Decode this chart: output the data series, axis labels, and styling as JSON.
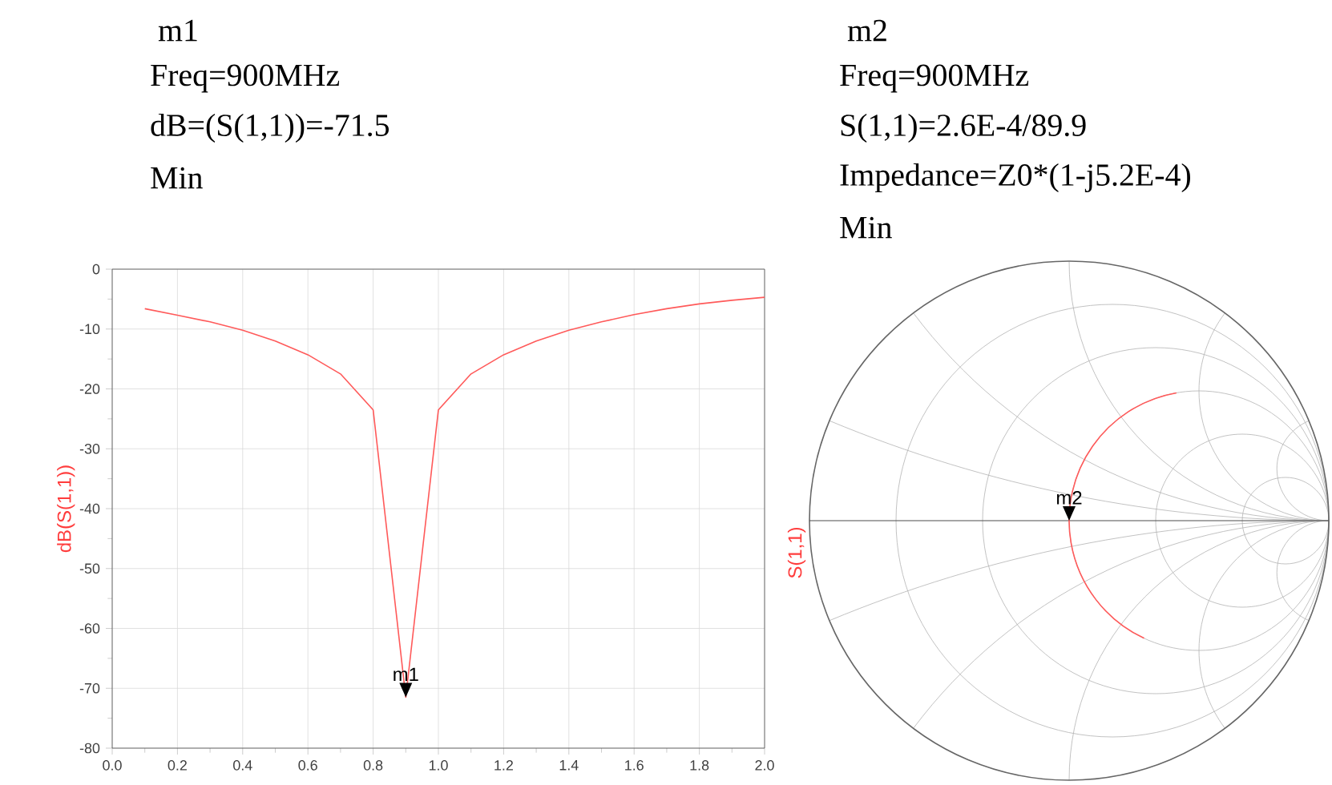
{
  "chart_data": [
    {
      "type": "line",
      "xlabel": null,
      "ylabel": "dB(S(1,1))",
      "x": [
        0.1,
        0.2,
        0.3,
        0.4,
        0.5,
        0.6,
        0.7,
        0.8,
        0.9,
        1.0,
        1.1,
        1.2,
        1.3,
        1.4,
        1.5,
        1.6,
        1.7,
        1.8,
        1.9,
        2.0
      ],
      "series": [
        {
          "color": "#ff5a5a",
          "values": [
            -6.6,
            -7.7,
            -8.8,
            -10.2,
            -12,
            -14.3,
            -17.5,
            -23.5,
            -71.5,
            -23.5,
            -17.5,
            -14.3,
            -12,
            -10.2,
            -8.8,
            -7.6,
            -6.6,
            -5.8,
            -5.2,
            -4.7
          ]
        }
      ],
      "xlim": [
        0,
        2
      ],
      "ylim": [
        -80,
        0
      ],
      "xticks": [
        {
          "value": 0,
          "label": "0.0"
        },
        {
          "value": 0.2,
          "label": "0.2"
        },
        {
          "value": 0.4,
          "label": "0.4"
        },
        {
          "value": 0.6,
          "label": "0.6"
        },
        {
          "value": 0.8,
          "label": "0.8"
        },
        {
          "value": 1,
          "label": "1.0"
        },
        {
          "value": 1.2,
          "label": "1.2"
        },
        {
          "value": 1.4,
          "label": "1.4"
        },
        {
          "value": 1.6,
          "label": "1.6"
        },
        {
          "value": 1.8,
          "label": "1.8"
        },
        {
          "value": 2,
          "label": "2.0"
        }
      ],
      "yticks": [
        0,
        -10,
        -20,
        -30,
        -40,
        -50,
        -60,
        -70,
        -80
      ],
      "grid": true,
      "annotations": [
        "m1",
        "Freq=900MHz",
        "dB=(S(1,1))=-71.5",
        "Min",
        {
          "text": "m1",
          "x": 0.9,
          "y": -71.5
        }
      ]
    },
    {
      "type": "other",
      "ylabel": "S(1,1)",
      "annotations": [
        "m2",
        "Freq=900MHz",
        "S(1,1)=2.6E-4/89.9",
        "Impedance=Z0*(1-j5.2E-4)",
        "Min",
        "m2"
      ]
    }
  ]
}
